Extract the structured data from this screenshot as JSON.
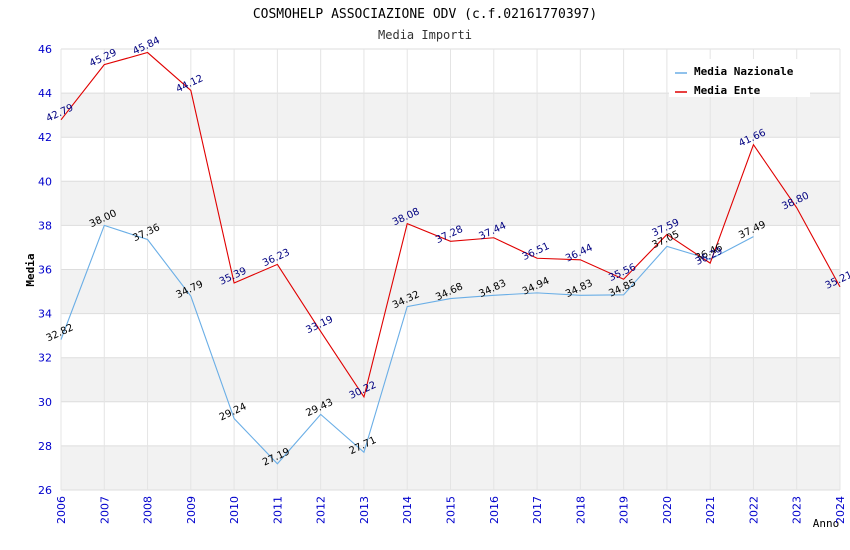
{
  "chart_data": {
    "type": "line",
    "title": "COSMOHELP ASSOCIAZIONE ODV (c.f.02161770397)",
    "subtitle": "Media Importi",
    "xlabel": "Anno",
    "ylabel": "Media",
    "ylim": [
      26,
      46
    ],
    "yticks": [
      "26",
      "28",
      "30",
      "32",
      "34",
      "36",
      "38",
      "40",
      "42",
      "44",
      "46"
    ],
    "x": [
      "2006",
      "2007",
      "2008",
      "2009",
      "2010",
      "2011",
      "2012",
      "2013",
      "2014",
      "2015",
      "2016",
      "2017",
      "2018",
      "2019",
      "2020",
      "2021",
      "2022",
      "2023",
      "2024"
    ],
    "legend_position": "top-right",
    "grid": true,
    "series": [
      {
        "name": "Media Nazionale",
        "color": "#6aaee6",
        "label_color": "#000000",
        "values": [
          32.82,
          38.0,
          37.36,
          34.79,
          29.24,
          27.19,
          29.43,
          27.71,
          34.32,
          34.68,
          34.83,
          34.94,
          34.83,
          34.85,
          37.05,
          36.46,
          37.49,
          null,
          null
        ],
        "labels": [
          "32.82",
          "38.00",
          "37.36",
          "34.79",
          "29.24",
          "27.19",
          "29.43",
          "27.71",
          "34.32",
          "34.68",
          "34.83",
          "34.94",
          "34.83",
          "34.85",
          "37.05",
          "36.46",
          "37.49",
          "",
          ""
        ]
      },
      {
        "name": "Media Ente",
        "color": "#e00000",
        "label_color": "#000080",
        "values": [
          42.79,
          45.29,
          45.84,
          44.12,
          35.39,
          36.23,
          33.19,
          30.22,
          38.08,
          37.28,
          37.44,
          36.51,
          36.44,
          35.56,
          37.59,
          36.29,
          41.66,
          38.8,
          35.21
        ],
        "labels": [
          "42.79",
          "45.29",
          "45.84",
          "44.12",
          "35.39",
          "36.23",
          "33.19",
          "30.22",
          "38.08",
          "37.28",
          "37.44",
          "36.51",
          "36.44",
          "35.56",
          "37.59",
          "36.29",
          "41.66",
          "38.80",
          "35.21"
        ]
      }
    ]
  }
}
